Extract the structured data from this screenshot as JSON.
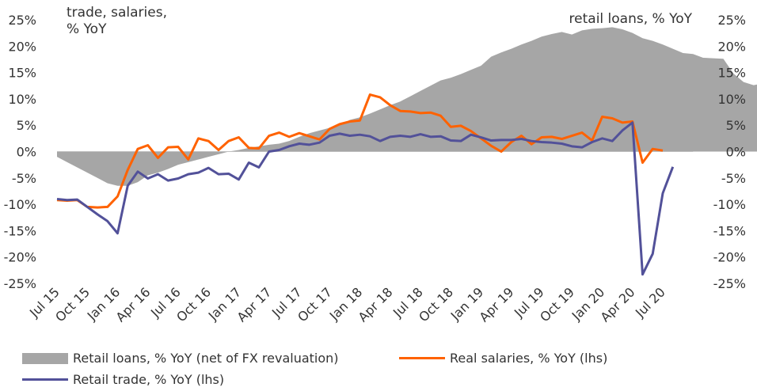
{
  "chart_data": {
    "type": "area+line",
    "left_axis_title": "trade, salaries,\n% YoY",
    "right_axis_title": "retail loans, % YoY",
    "ylim": [
      -25,
      25
    ],
    "y_ticks": [
      25,
      20,
      15,
      10,
      5,
      0,
      -5,
      -10,
      -15,
      -20,
      -25
    ],
    "y_tick_labels": [
      "25%",
      "20%",
      "15%",
      "10%",
      "5%",
      "0%",
      "-5%",
      "-10%",
      "-15%",
      "-20%",
      "-25%"
    ],
    "x_tick_labels": [
      "Jul 15",
      "Oct 15",
      "Jan 16",
      "Apr 16",
      "Jul 16",
      "Oct 16",
      "Jan 17",
      "Apr 17",
      "Jul 17",
      "Oct 17",
      "Jan 18",
      "Apr 18",
      "Jul 18",
      "Oct 18",
      "Jan 19",
      "Apr 19",
      "Jul 19",
      "Oct 19",
      "Jan 20",
      "Apr 20",
      "Jul 20"
    ],
    "x_start": "Jul 15",
    "grid": false,
    "series": [
      {
        "name": "Retail loans, % YoY (net of FX revaluation)",
        "kind": "area",
        "axis": "right",
        "color": "#a6a6a6",
        "values": [
          -1.0,
          -2.0,
          -3.0,
          -4.0,
          -5.0,
          -6.0,
          -6.5,
          -6.5,
          -5.8,
          -4.5,
          -4.0,
          -3.3,
          -2.5,
          -2.0,
          -1.5,
          -1.0,
          -0.5,
          0.0,
          0.3,
          0.7,
          1.0,
          1.3,
          1.5,
          2.0,
          2.8,
          3.5,
          4.0,
          4.5,
          5.0,
          6.0,
          6.5,
          7.2,
          8.0,
          8.8,
          9.5,
          10.5,
          11.5,
          12.5,
          13.5,
          14.0,
          14.7,
          15.5,
          16.3,
          18.0,
          18.8,
          19.5,
          20.3,
          21.0,
          21.8,
          22.3,
          22.7,
          22.2,
          23.0,
          23.3,
          23.4,
          23.6,
          23.2,
          22.5,
          21.5,
          21.0,
          20.3,
          19.5,
          18.7,
          18.5,
          17.8,
          17.7,
          17.6,
          14.8,
          13.2,
          12.6,
          13.0
        ]
      },
      {
        "name": "Real salaries, % YoY (lhs)",
        "kind": "line",
        "axis": "left",
        "color": "#ff6200",
        "values": [
          -9.2,
          -9.3,
          -9.2,
          -10.5,
          -10.6,
          -10.5,
          -8.5,
          -3.5,
          0.5,
          1.2,
          -1.2,
          0.8,
          0.9,
          -1.5,
          2.5,
          2.0,
          0.3,
          2.0,
          2.7,
          0.7,
          0.6,
          3.0,
          3.6,
          2.8,
          3.5,
          2.9,
          2.3,
          4.3,
          5.2,
          5.7,
          5.9,
          10.8,
          10.3,
          8.8,
          7.7,
          7.6,
          7.3,
          7.4,
          6.8,
          4.7,
          4.9,
          3.9,
          2.5,
          1.1,
          0.0,
          1.8,
          3.0,
          1.4,
          2.7,
          2.8,
          2.4,
          3.0,
          3.6,
          2.1,
          6.6,
          6.3,
          5.5,
          5.7,
          -2.1,
          0.5,
          0.2
        ]
      },
      {
        "name": "Retail trade, % YoY (lhs)",
        "kind": "line",
        "axis": "left",
        "color": "#525199",
        "values": [
          -9.0,
          -9.2,
          -9.1,
          -10.5,
          -11.9,
          -13.2,
          -15.5,
          -6.5,
          -3.8,
          -5.1,
          -4.3,
          -5.5,
          -5.1,
          -4.3,
          -4.0,
          -3.1,
          -4.3,
          -4.2,
          -5.3,
          -2.1,
          -3.0,
          0.0,
          0.3,
          1.0,
          1.5,
          1.3,
          1.7,
          3.0,
          3.4,
          3.0,
          3.2,
          2.9,
          2.0,
          2.8,
          3.0,
          2.8,
          3.3,
          2.8,
          2.9,
          2.1,
          2.0,
          3.2,
          2.7,
          2.1,
          2.2,
          2.2,
          2.4,
          2.0,
          1.8,
          1.7,
          1.5,
          1.0,
          0.8,
          1.8,
          2.5,
          2.0,
          4.0,
          5.5,
          -23.3,
          -19.4,
          -7.9,
          -2.9
        ]
      }
    ],
    "legend": {
      "placement": "bottom",
      "entries": [
        "Retail loans, % YoY (net of FX revaluation)",
        "Real salaries, % YoY (lhs)",
        "Retail trade, % YoY (lhs)"
      ]
    }
  }
}
